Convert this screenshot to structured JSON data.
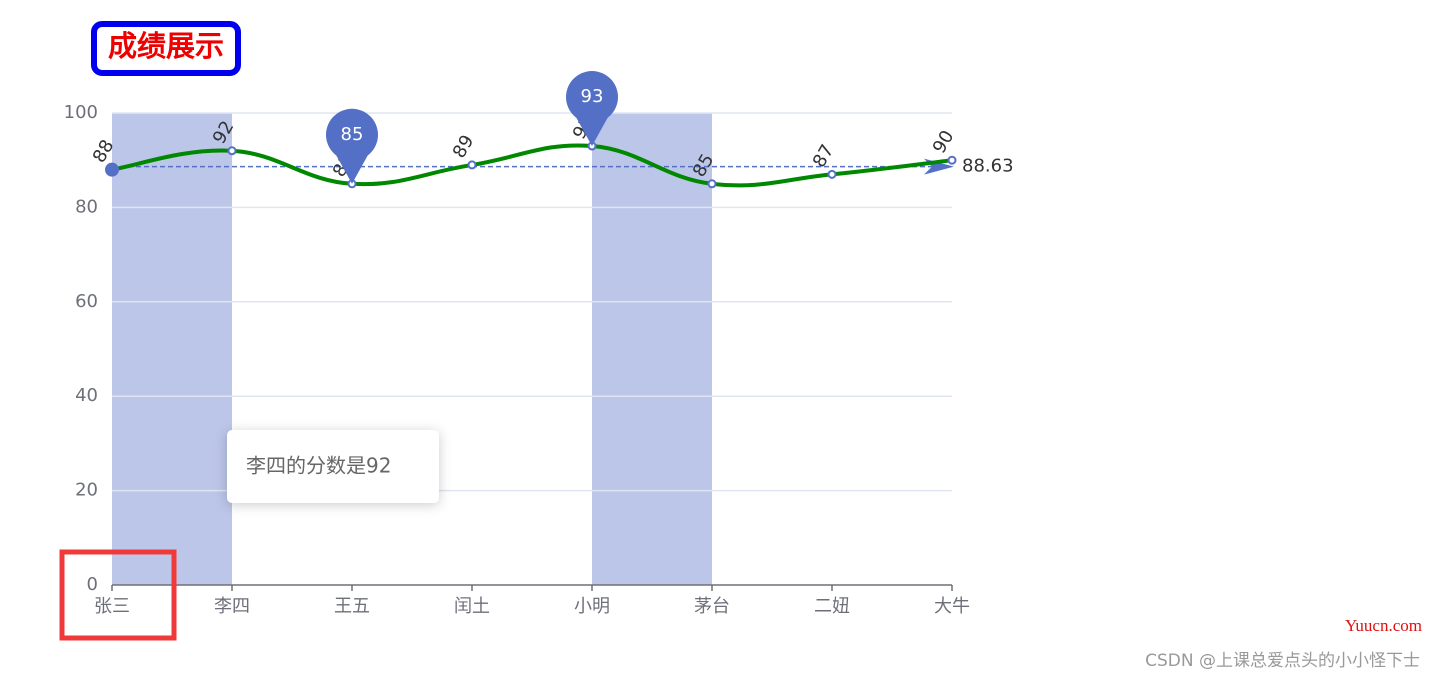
{
  "chart_data": {
    "type": "line",
    "title": "成绩展示",
    "categories": [
      "张三",
      "李四",
      "王五",
      "闰土",
      "小明",
      "茅台",
      "二妞",
      "大牛"
    ],
    "series": [
      {
        "color": "#008800",
        "values": [
          88,
          92,
          85,
          89,
          93,
          85,
          87,
          90
        ]
      }
    ],
    "ylim": [
      0,
      100
    ],
    "yticks": [
      0,
      20,
      40,
      60,
      80,
      100
    ],
    "grid": true,
    "smooth": true,
    "mark_points": [
      "max",
      "min"
    ],
    "mark_point_color": "#5470c6",
    "mark_line": {
      "value": 88.63
    },
    "mark_line_color": "#5470c6",
    "mark_areas": [
      {
        "from": "张三",
        "to": "李四"
      },
      {
        "from": "小明",
        "to": "茅台"
      }
    ],
    "mark_area_color": "#bcc6e8",
    "tooltip": "李四的分数是92"
  },
  "watermark": "Yuucn.com",
  "credit": "CSDN @上课总爱点头的小小怪下士"
}
